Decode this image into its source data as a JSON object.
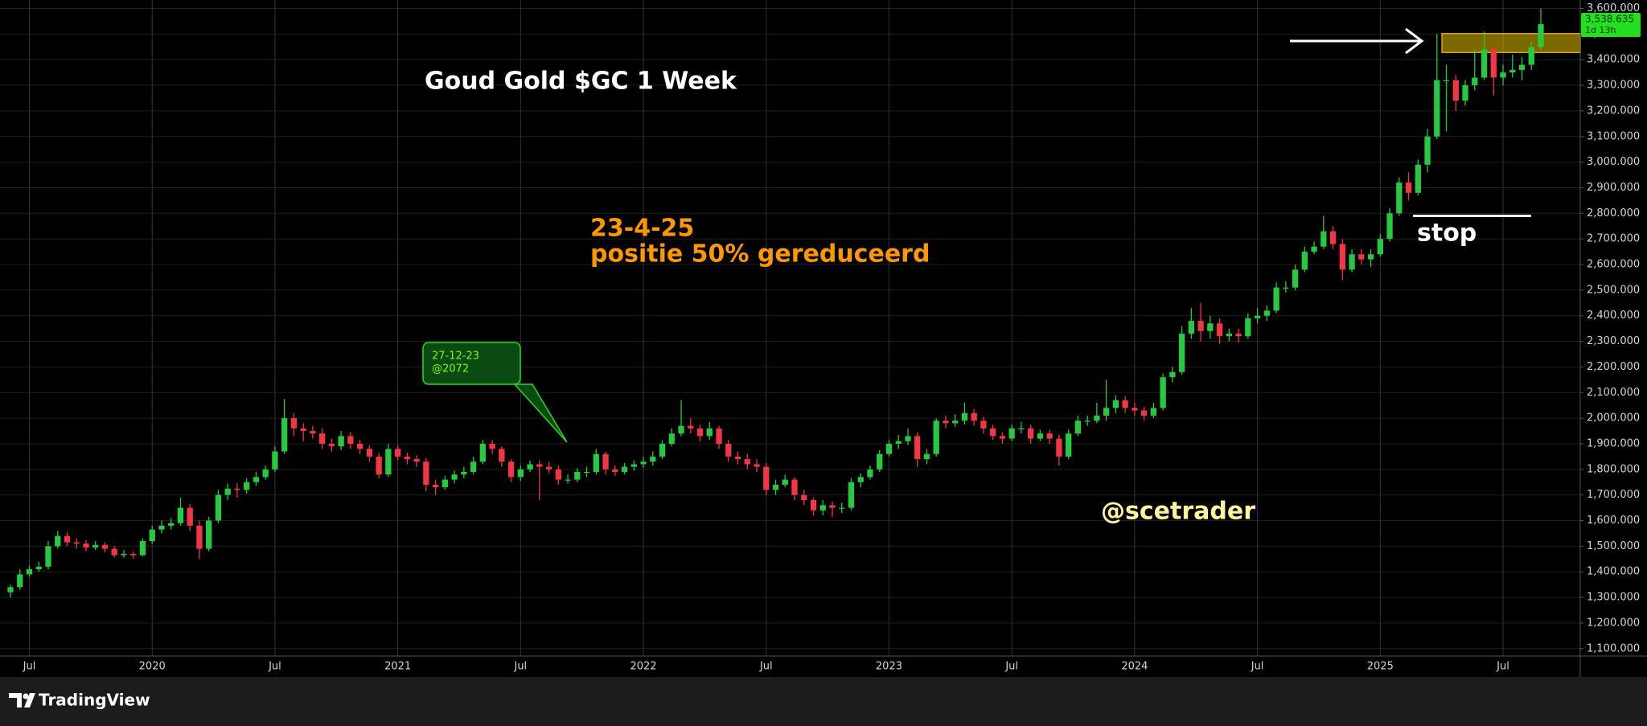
{
  "chart_data": {
    "type": "candlestick",
    "title": "Goud Gold $GC 1 Week",
    "categories": [
      null,
      null,
      "Jul",
      null,
      null,
      null,
      null,
      null,
      null,
      null,
      null,
      null,
      null,
      null,
      null,
      "2020",
      null,
      null,
      null,
      null,
      null,
      null,
      null,
      null,
      null,
      null,
      null,
      null,
      "Jul",
      null,
      null,
      null,
      null,
      null,
      null,
      null,
      null,
      null,
      null,
      null,
      null,
      "2021",
      null,
      null,
      null,
      null,
      null,
      null,
      null,
      null,
      null,
      null,
      null,
      null,
      "Jul",
      null,
      null,
      null,
      null,
      null,
      null,
      null,
      null,
      null,
      null,
      null,
      null,
      "2022",
      null,
      null,
      null,
      null,
      null,
      null,
      null,
      null,
      null,
      null,
      null,
      null,
      "Jul",
      null,
      null,
      null,
      null,
      null,
      null,
      null,
      null,
      null,
      null,
      null,
      null,
      "2023",
      null,
      null,
      null,
      null,
      null,
      null,
      null,
      null,
      null,
      null,
      null,
      null,
      "Jul",
      null,
      null,
      null,
      null,
      null,
      null,
      null,
      null,
      null,
      null,
      null,
      null,
      "2024",
      null,
      null,
      null,
      null,
      null,
      null,
      null,
      null,
      null,
      null,
      null,
      null,
      "Jul",
      null,
      null,
      null,
      null,
      null,
      null,
      null,
      null,
      null,
      null,
      null,
      null,
      "2025",
      null,
      null,
      null,
      null,
      null,
      null,
      null,
      null,
      null,
      null,
      null,
      null,
      "Jul",
      null,
      null,
      null,
      null
    ],
    "open": [
      1320,
      1340,
      1390,
      1410,
      1420,
      1500,
      1540,
      1515,
      1510,
      1495,
      1505,
      1490,
      1465,
      1470,
      1465,
      1520,
      1565,
      1580,
      1590,
      1650,
      1580,
      1490,
      1600,
      1700,
      1725,
      1720,
      1750,
      1770,
      1800,
      1870,
      2000,
      1960,
      1950,
      1940,
      1900,
      1890,
      1930,
      1900,
      1880,
      1850,
      1780,
      1880,
      1850,
      1840,
      1830,
      1740,
      1730,
      1760,
      1780,
      1790,
      1830,
      1900,
      1880,
      1830,
      1770,
      1800,
      1820,
      1810,
      1800,
      1760,
      1760,
      1790,
      1790,
      1860,
      1800,
      1790,
      1810,
      1820,
      1830,
      1850,
      1900,
      1940,
      1970,
      1960,
      1930,
      1960,
      1900,
      1850,
      1840,
      1820,
      1810,
      1720,
      1740,
      1760,
      1700,
      1680,
      1640,
      1660,
      1650,
      1650,
      1750,
      1770,
      1800,
      1860,
      1900,
      1910,
      1930,
      1840,
      1860,
      1990,
      1980,
      1990,
      2020,
      1990,
      1960,
      1930,
      1920,
      1960,
      1960,
      1920,
      1940,
      1920,
      1850,
      1940,
      1990,
      1990,
      2010,
      2040,
      2070,
      2040,
      2030,
      2010,
      2040,
      2160,
      2180,
      2330,
      2380,
      2340,
      2370,
      2320,
      2330,
      2320,
      2390,
      2400,
      2420,
      2510,
      2510,
      2580,
      2650,
      2670,
      2730,
      2680,
      2580,
      2640,
      2620,
      2640,
      2700,
      2800,
      2920,
      2880,
      2990,
      3100,
      3320,
      3320,
      3240,
      3300,
      3330,
      3440,
      3330,
      3350,
      3360,
      3380,
      3450
    ],
    "high": [
      1350,
      1410,
      1425,
      1440,
      1520,
      1560,
      1555,
      1530,
      1525,
      1520,
      1515,
      1500,
      1485,
      1480,
      1530,
      1580,
      1600,
      1610,
      1690,
      1665,
      1600,
      1615,
      1720,
      1745,
      1745,
      1765,
      1790,
      1815,
      1890,
      2075,
      2020,
      1980,
      1970,
      1960,
      1920,
      1950,
      1945,
      1915,
      1895,
      1865,
      1900,
      1895,
      1865,
      1855,
      1845,
      1760,
      1775,
      1795,
      1810,
      1850,
      1915,
      1915,
      1890,
      1840,
      1815,
      1835,
      1835,
      1830,
      1815,
      1780,
      1805,
      1810,
      1880,
      1870,
      1815,
      1825,
      1835,
      1850,
      1870,
      1915,
      1960,
      2070,
      2000,
      1975,
      1985,
      1970,
      1915,
      1870,
      1860,
      1840,
      1825,
      1760,
      1780,
      1770,
      1720,
      1690,
      1680,
      1675,
      1670,
      1765,
      1785,
      1815,
      1875,
      1915,
      1935,
      1960,
      1945,
      1880,
      2000,
      2010,
      2015,
      2060,
      2035,
      2005,
      1975,
      1945,
      1975,
      1985,
      1975,
      1955,
      1955,
      1935,
      1955,
      2010,
      2010,
      2060,
      2150,
      2090,
      2085,
      2060,
      2045,
      2060,
      2175,
      2200,
      2360,
      2430,
      2450,
      2400,
      2390,
      2350,
      2350,
      2410,
      2430,
      2440,
      2530,
      2535,
      2600,
      2670,
      2690,
      2790,
      2750,
      2700,
      2660,
      2660,
      2660,
      2720,
      2820,
      2940,
      2960,
      3010,
      3130,
      3500,
      3380,
      3340,
      3320,
      3440,
      3510,
      3450,
      3380,
      3420,
      3410,
      3470,
      3600
    ],
    "low": [
      1300,
      1330,
      1380,
      1400,
      1410,
      1490,
      1500,
      1490,
      1480,
      1485,
      1475,
      1455,
      1455,
      1450,
      1460,
      1510,
      1550,
      1565,
      1580,
      1560,
      1450,
      1480,
      1590,
      1680,
      1690,
      1705,
      1735,
      1760,
      1790,
      1860,
      1930,
      1910,
      1920,
      1880,
      1870,
      1875,
      1880,
      1860,
      1830,
      1765,
      1770,
      1835,
      1820,
      1810,
      1715,
      1700,
      1720,
      1745,
      1765,
      1780,
      1820,
      1860,
      1810,
      1750,
      1755,
      1790,
      1680,
      1785,
      1740,
      1745,
      1750,
      1770,
      1780,
      1780,
      1775,
      1780,
      1795,
      1805,
      1815,
      1840,
      1890,
      1930,
      1940,
      1910,
      1915,
      1880,
      1830,
      1820,
      1800,
      1790,
      1700,
      1700,
      1730,
      1680,
      1660,
      1620,
      1620,
      1615,
      1630,
      1640,
      1730,
      1760,
      1790,
      1850,
      1880,
      1895,
      1810,
      1820,
      1850,
      1960,
      1965,
      1975,
      1970,
      1940,
      1915,
      1900,
      1910,
      1940,
      1900,
      1910,
      1900,
      1815,
      1840,
      1930,
      1970,
      1980,
      1990,
      2020,
      2020,
      2010,
      1990,
      2000,
      2030,
      2140,
      2170,
      2310,
      2300,
      2310,
      2290,
      2300,
      2295,
      2310,
      2370,
      2380,
      2410,
      2490,
      2500,
      2570,
      2640,
      2660,
      2660,
      2540,
      2570,
      2600,
      2590,
      2630,
      2690,
      2790,
      2850,
      2870,
      2960,
      3090,
      3120,
      3200,
      3220,
      3280,
      3320,
      3260,
      3300,
      3330,
      3320,
      3360,
      3440
    ],
    "close": [
      1340,
      1390,
      1410,
      1420,
      1500,
      1540,
      1515,
      1510,
      1495,
      1505,
      1490,
      1465,
      1470,
      1465,
      1520,
      1565,
      1580,
      1590,
      1650,
      1580,
      1490,
      1600,
      1700,
      1725,
      1720,
      1750,
      1770,
      1800,
      1870,
      2000,
      1960,
      1950,
      1940,
      1900,
      1890,
      1930,
      1900,
      1880,
      1850,
      1780,
      1880,
      1850,
      1840,
      1830,
      1740,
      1730,
      1760,
      1780,
      1790,
      1830,
      1900,
      1880,
      1830,
      1770,
      1800,
      1820,
      1810,
      1800,
      1760,
      1760,
      1790,
      1790,
      1860,
      1800,
      1790,
      1810,
      1820,
      1830,
      1850,
      1900,
      1940,
      1970,
      1960,
      1930,
      1960,
      1900,
      1850,
      1840,
      1820,
      1810,
      1720,
      1740,
      1760,
      1700,
      1680,
      1640,
      1660,
      1650,
      1650,
      1750,
      1770,
      1800,
      1860,
      1900,
      1910,
      1930,
      1840,
      1860,
      1990,
      1980,
      1990,
      2020,
      1990,
      1960,
      1930,
      1920,
      1960,
      1960,
      1920,
      1940,
      1920,
      1850,
      1940,
      1990,
      1990,
      2010,
      2040,
      2070,
      2040,
      2030,
      2010,
      2040,
      2160,
      2180,
      2330,
      2380,
      2340,
      2370,
      2320,
      2330,
      2320,
      2390,
      2400,
      2420,
      2510,
      2510,
      2580,
      2650,
      2670,
      2730,
      2680,
      2580,
      2640,
      2620,
      2640,
      2700,
      2800,
      2920,
      2880,
      2990,
      3100,
      3320,
      3320,
      3240,
      3300,
      3330,
      3440,
      3330,
      3350,
      3360,
      3380,
      3450,
      3538.635
    ],
    "up_color": "#26c940",
    "down_color": "#f23645",
    "ylim": [
      1071,
      3633
    ],
    "yticks": [
      {
        "value": 1100,
        "label": "1,100.000"
      },
      {
        "value": 1200,
        "label": "1,200.000"
      },
      {
        "value": 1300,
        "label": "1,300.000"
      },
      {
        "value": 1400,
        "label": "1,400.000"
      },
      {
        "value": 1500,
        "label": "1,500.000"
      },
      {
        "value": 1600,
        "label": "1,600.000"
      },
      {
        "value": 1700,
        "label": "1,700.000"
      },
      {
        "value": 1800,
        "label": "1,800.000"
      },
      {
        "value": 1900,
        "label": "1,900.000"
      },
      {
        "value": 2000,
        "label": "2,000.000"
      },
      {
        "value": 2100,
        "label": "2,100.000"
      },
      {
        "value": 2200,
        "label": "2,200.000"
      },
      {
        "value": 2300,
        "label": "2,300.000"
      },
      {
        "value": 2400,
        "label": "2,400.000"
      },
      {
        "value": 2500,
        "label": "2,500.000"
      },
      {
        "value": 2600,
        "label": "2,600.000"
      },
      {
        "value": 2700,
        "label": "2,700.000"
      },
      {
        "value": 2800,
        "label": "2,800.000"
      },
      {
        "value": 2900,
        "label": "2,900.000"
      },
      {
        "value": 3000,
        "label": "3,000.000"
      },
      {
        "value": 3100,
        "label": "3,100.000"
      },
      {
        "value": 3200,
        "label": "3,200.000"
      },
      {
        "value": 3300,
        "label": "3,300.000"
      },
      {
        "value": 3400,
        "label": "3,400.000"
      },
      {
        "value": 3500,
        "label": "3,500.000"
      },
      {
        "value": 3600,
        "label": "3,600.000"
      }
    ],
    "grid": true,
    "last_price": {
      "value": 3538.635,
      "label": "3,538.635"
    },
    "countdown": "1d 13h",
    "zone": [
      3428,
      3502
    ],
    "stop_level": 2790,
    "annotations": {
      "date": "23-4-25",
      "note": "positie 50% gereduceerd",
      "stop_label": "stop",
      "handle": "@scetrader",
      "callout_date": "27-12-23",
      "callout_price": "@2072"
    }
  },
  "footer": {
    "brand": "TradingView"
  }
}
